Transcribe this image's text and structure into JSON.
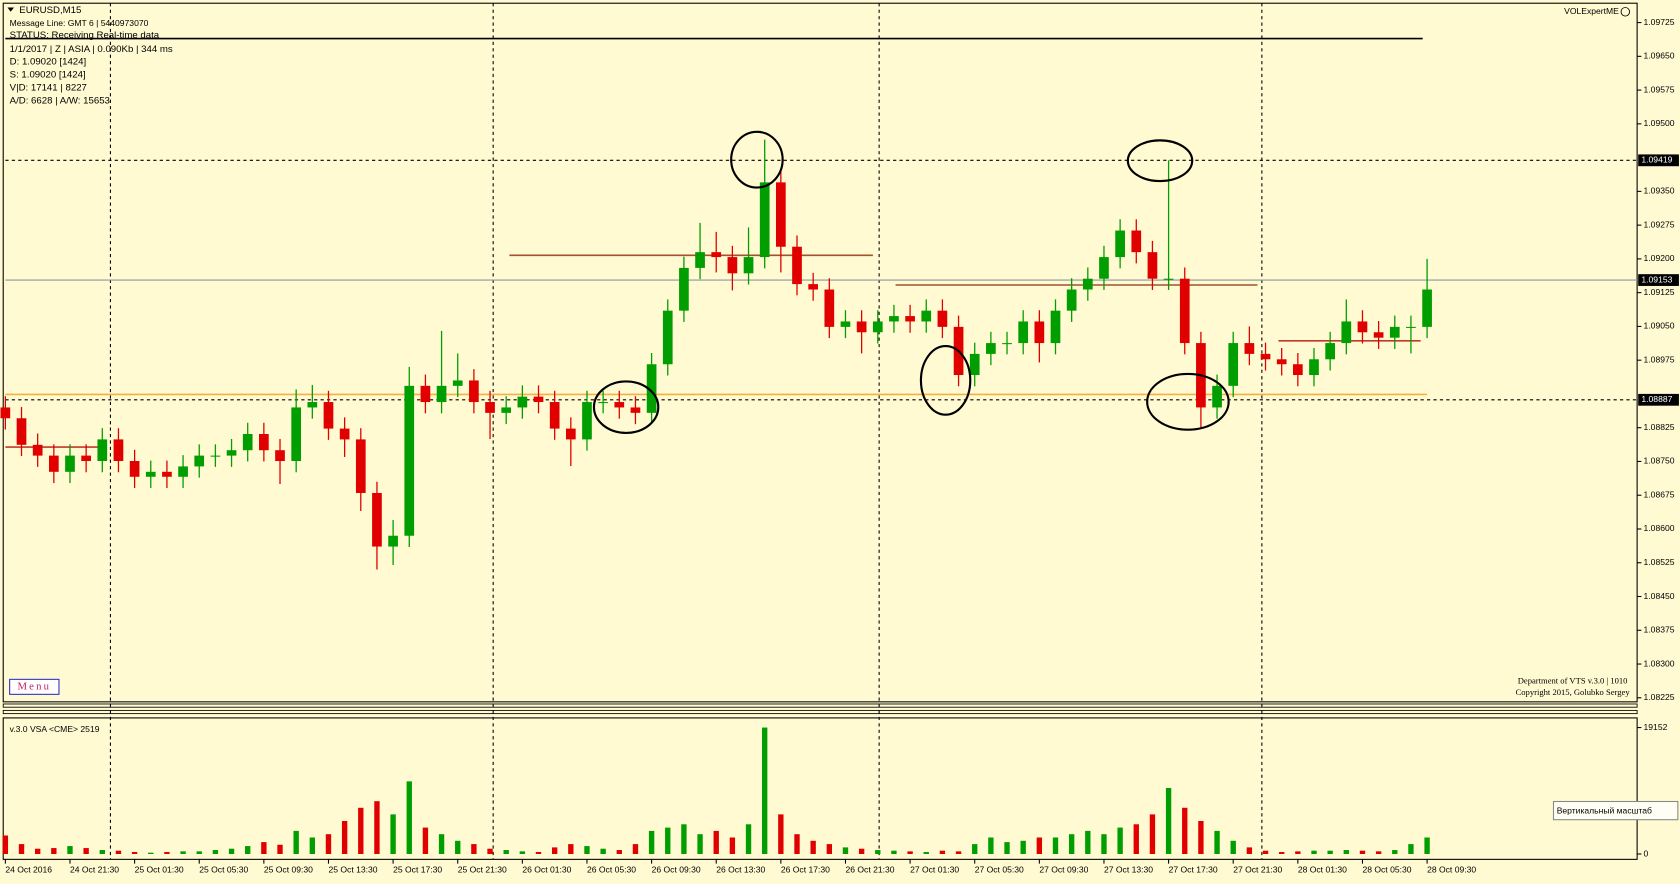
{
  "window": {
    "symbol": "EURUSD,M15",
    "message_line": "Message Line: GMT 6 | 5440973070",
    "status": "STATUS:  Receiving Real-time data",
    "info": [
      "1/1/2017 | Z | ASIA | 0.090Kb | 344 ms",
      "D: 1.09020  [1424]",
      "S: 1.09020  [1424]",
      "V|D: 17141 | 8227",
      "A/D: 6628 | A/W: 15653"
    ],
    "brand": "VOLExpertME",
    "menu": "Menu",
    "footer": [
      "Department of VTS  v.3.0 | 1010",
      "Copyright 2015, Golubko Sergey"
    ],
    "scale_button": "Вертикальный масштаб"
  },
  "chart_data": {
    "type": "candlestick",
    "title": "EURUSD,M15",
    "up_color": "#009e00",
    "down_color": "#e00000",
    "xlim": [
      0,
      101
    ],
    "xticks": [
      {
        "value": 0,
        "label": "24 Oct 2016"
      },
      {
        "value": 4,
        "label": "24 Oct 21:30"
      },
      {
        "value": 8,
        "label": "25 Oct 01:30"
      },
      {
        "value": 12,
        "label": "25 Oct 05:30"
      },
      {
        "value": 16,
        "label": "25 Oct 09:30"
      },
      {
        "value": 20,
        "label": "25 Oct 13:30"
      },
      {
        "value": 24,
        "label": "25 Oct 17:30"
      },
      {
        "value": 28,
        "label": "25 Oct 21:30"
      },
      {
        "value": 32,
        "label": "26 Oct 01:30"
      },
      {
        "value": 36,
        "label": "26 Oct 05:30"
      },
      {
        "value": 40,
        "label": "26 Oct 09:30"
      },
      {
        "value": 44,
        "label": "26 Oct 13:30"
      },
      {
        "value": 48,
        "label": "26 Oct 17:30"
      },
      {
        "value": 52,
        "label": "26 Oct 21:30"
      },
      {
        "value": 56,
        "label": "27 Oct 01:30"
      },
      {
        "value": 60,
        "label": "27 Oct 05:30"
      },
      {
        "value": 64,
        "label": "27 Oct 09:30"
      },
      {
        "value": 68,
        "label": "27 Oct 13:30"
      },
      {
        "value": 72,
        "label": "27 Oct 17:30"
      },
      {
        "value": 76,
        "label": "27 Oct 21:30"
      },
      {
        "value": 80,
        "label": "28 Oct 01:30"
      },
      {
        "value": 84,
        "label": "28 Oct 05:30"
      },
      {
        "value": 88,
        "label": "28 Oct 09:30"
      }
    ],
    "ylim": [
      1.08216,
      1.09768
    ],
    "yticks": [
      1.09725,
      {
        "value": 1.0965,
        "label": "1.09650"
      },
      1.09575,
      {
        "value": 1.095,
        "label": "1.09500"
      },
      {
        "value": 1.0935,
        "label": "1.09350"
      },
      1.09275,
      {
        "value": 1.092,
        "label": "1.09200"
      },
      1.09125,
      {
        "value": 1.0905,
        "label": "1.09050"
      },
      1.08975,
      1.08825,
      {
        "value": 1.0875,
        "label": "1.08750"
      },
      1.08675,
      {
        "value": 1.086,
        "label": "1.08600"
      },
      1.08525,
      {
        "value": 1.0845,
        "label": "1.08450"
      },
      1.08375,
      {
        "value": 1.083,
        "label": "1.08300"
      },
      1.08225
    ],
    "price_lines": [
      {
        "value": 1.09419,
        "color": "#000000",
        "dashed": true
      },
      {
        "value": 1.09153,
        "color": "#8c96a0",
        "dashed": false
      },
      {
        "value": 1.08887,
        "color": "#000000",
        "dashed": true
      }
    ],
    "levels": [
      {
        "value": 1.08899,
        "color": "#f5b041",
        "from": 0,
        "to": 88
      },
      {
        "value": 1.09208,
        "color": "#a0522d",
        "from": 31.2,
        "to": 53.7
      },
      {
        "value": 1.09142,
        "color": "#a0522d",
        "from": 55.1,
        "to": 77.5
      },
      {
        "value": 1.09018,
        "color": "#c0392b",
        "from": 78.8,
        "to": 87.6
      },
      {
        "value": 1.08782,
        "color": "#c0392b",
        "from": 0,
        "to": 6
      }
    ],
    "open": [
      1.0887,
      1.08846,
      1.08787,
      1.08763,
      1.08727,
      1.08763,
      1.08751,
      1.08799,
      1.08751,
      1.08716,
      1.08727,
      1.08716,
      1.08739,
      1.08763,
      1.08763,
      1.08775,
      1.08811,
      1.08775,
      1.08751,
      1.0887,
      1.08882,
      1.08823,
      1.08799,
      1.0868,
      1.08561,
      1.08585,
      1.08918,
      1.08882,
      1.08918,
      1.0893,
      1.08882,
      1.08858,
      1.0887,
      1.08894,
      1.08882,
      1.08823,
      1.08799,
      1.08882,
      1.08882,
      1.0887,
      1.08858,
      1.08966,
      1.09085,
      1.0918,
      1.09215,
      1.09204,
      1.09168,
      1.09204,
      1.0937,
      1.09227,
      1.09144,
      1.09132,
      1.09049,
      1.09061,
      1.09037,
      1.09061,
      1.09073,
      1.09061,
      1.09085,
      1.09049,
      1.08942,
      1.08989,
      1.09013,
      1.09013,
      1.09061,
      1.09013,
      1.09085,
      1.09132,
      1.09156,
      1.09204,
      1.09263,
      1.09215,
      1.09156,
      1.09156,
      1.09013,
      1.0887,
      1.08918,
      1.09013,
      1.08989,
      1.08977,
      1.08966,
      1.08942,
      1.08977,
      1.09013,
      1.09061,
      1.09037,
      1.09025,
      1.09049,
      1.09049
    ],
    "high": [
      1.08895,
      1.08871,
      1.08812,
      1.08788,
      1.08788,
      1.08788,
      1.08824,
      1.08824,
      1.08776,
      1.08752,
      1.08752,
      1.08764,
      1.08788,
      1.08788,
      1.088,
      1.08836,
      1.08836,
      1.088,
      1.0891,
      1.0892,
      1.08907,
      1.08848,
      1.08824,
      1.08705,
      1.0862,
      1.0896,
      1.08943,
      1.0904,
      1.0899,
      1.08955,
      1.08907,
      1.08895,
      1.08919,
      1.08919,
      1.08907,
      1.08848,
      1.08907,
      1.08907,
      1.08907,
      1.08895,
      1.08991,
      1.0911,
      1.09205,
      1.0928,
      1.0926,
      1.09229,
      1.0927,
      1.09465,
      1.09395,
      1.09252,
      1.09169,
      1.09157,
      1.09086,
      1.09086,
      1.09086,
      1.09098,
      1.09098,
      1.0911,
      1.0911,
      1.09074,
      1.09014,
      1.09038,
      1.09038,
      1.09086,
      1.09086,
      1.0911,
      1.09157,
      1.09181,
      1.09229,
      1.09288,
      1.09288,
      1.0924,
      1.09419,
      1.09181,
      1.09038,
      1.08943,
      1.09038,
      1.0905,
      1.09014,
      1.09002,
      1.08991,
      1.09002,
      1.09038,
      1.0911,
      1.09086,
      1.09062,
      1.09074,
      1.09074,
      1.092
    ],
    "low": [
      1.08821,
      1.08762,
      1.08738,
      1.08702,
      1.08702,
      1.08726,
      1.08726,
      1.08726,
      1.08691,
      1.08691,
      1.08691,
      1.08691,
      1.08714,
      1.08738,
      1.08738,
      1.0875,
      1.0875,
      1.087,
      1.08726,
      1.08845,
      1.08798,
      1.0876,
      1.0864,
      1.0851,
      1.0852,
      1.0856,
      1.08857,
      1.08857,
      1.08893,
      1.08857,
      1.088,
      1.08833,
      1.08845,
      1.08857,
      1.08798,
      1.0874,
      1.08774,
      1.08857,
      1.08845,
      1.08833,
      1.08833,
      1.08941,
      1.0906,
      1.09155,
      1.0917,
      1.0913,
      1.09143,
      1.09179,
      1.0917,
      1.09119,
      1.09107,
      1.09024,
      1.09024,
      1.0899,
      1.09012,
      1.09036,
      1.09036,
      1.09036,
      1.09024,
      1.08917,
      1.08917,
      1.08964,
      1.08988,
      1.08988,
      1.0897,
      1.08988,
      1.0906,
      1.09107,
      1.09131,
      1.09179,
      1.0919,
      1.09131,
      1.09131,
      1.08988,
      1.08825,
      1.08845,
      1.08893,
      1.08964,
      1.08952,
      1.08941,
      1.08917,
      1.08917,
      1.08952,
      1.08988,
      1.09012,
      1.09,
      1.09,
      1.0899,
      1.09024
    ],
    "close": [
      1.08846,
      1.08787,
      1.08763,
      1.08727,
      1.08763,
      1.08751,
      1.08799,
      1.08751,
      1.08716,
      1.08727,
      1.08716,
      1.08739,
      1.08763,
      1.08763,
      1.08775,
      1.08811,
      1.08775,
      1.08751,
      1.0887,
      1.08882,
      1.08823,
      1.08799,
      1.0868,
      1.08561,
      1.08585,
      1.08918,
      1.08882,
      1.08918,
      1.0893,
      1.08882,
      1.08858,
      1.0887,
      1.08894,
      1.08882,
      1.08823,
      1.08799,
      1.08882,
      1.08882,
      1.0887,
      1.08858,
      1.08966,
      1.09085,
      1.0918,
      1.09215,
      1.09204,
      1.09168,
      1.09204,
      1.0937,
      1.09227,
      1.09144,
      1.09132,
      1.09049,
      1.09061,
      1.09037,
      1.09061,
      1.09073,
      1.09061,
      1.09085,
      1.09049,
      1.08942,
      1.08989,
      1.09013,
      1.09013,
      1.09061,
      1.09013,
      1.09085,
      1.09132,
      1.09156,
      1.09204,
      1.09263,
      1.09215,
      1.09156,
      1.09156,
      1.09013,
      1.0887,
      1.08918,
      1.09013,
      1.08989,
      1.08977,
      1.08966,
      1.08942,
      1.08977,
      1.09013,
      1.09061,
      1.09037,
      1.09025,
      1.09049,
      1.09049,
      1.09132
    ],
    "volume": {
      "title": "v.3.0 VSA <CME> 2519",
      "ylim": [
        0,
        19152
      ],
      "yticks": [
        0,
        19152
      ],
      "values": [
        2800,
        1500,
        800,
        900,
        1200,
        900,
        600,
        500,
        300,
        200,
        300,
        400,
        400,
        600,
        800,
        1200,
        1800,
        1400,
        3500,
        2500,
        3000,
        5000,
        7000,
        8000,
        6000,
        11000,
        4000,
        3000,
        2000,
        1500,
        800,
        600,
        400,
        300,
        1000,
        1500,
        1200,
        800,
        600,
        1500,
        3500,
        4000,
        4500,
        3000,
        3500,
        2500,
        4500,
        19152,
        6000,
        3000,
        2000,
        1500,
        1000,
        800,
        600,
        500,
        400,
        300,
        500,
        400,
        1500,
        2500,
        1800,
        2000,
        2500,
        2500,
        3000,
        3500,
        3000,
        4000,
        4500,
        6000,
        10000,
        7000,
        5000,
        3500,
        2000,
        1000,
        500,
        300,
        400,
        500,
        500,
        600,
        500,
        400,
        600,
        1500,
        2500
      ]
    }
  }
}
